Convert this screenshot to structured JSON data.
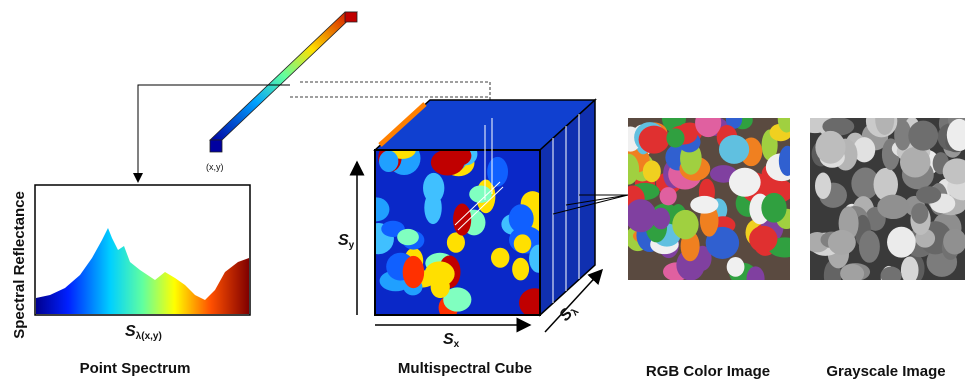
{
  "point_label": "(x,y)",
  "spectrum": {
    "y_axis": "Spectral Reflectance",
    "x_symbol": "S",
    "x_subscript": "λ(x,y)",
    "caption": "Point Spectrum"
  },
  "cube": {
    "y_symbol": "S",
    "y_subscript": "y",
    "x_symbol": "S",
    "x_subscript": "x",
    "depth_symbol": "S",
    "depth_subscript": "λ",
    "caption": "Multispectral Cube"
  },
  "rgb_image": {
    "caption": "RGB Color Image"
  },
  "grayscale_image": {
    "caption": "Grayscale Image"
  }
}
